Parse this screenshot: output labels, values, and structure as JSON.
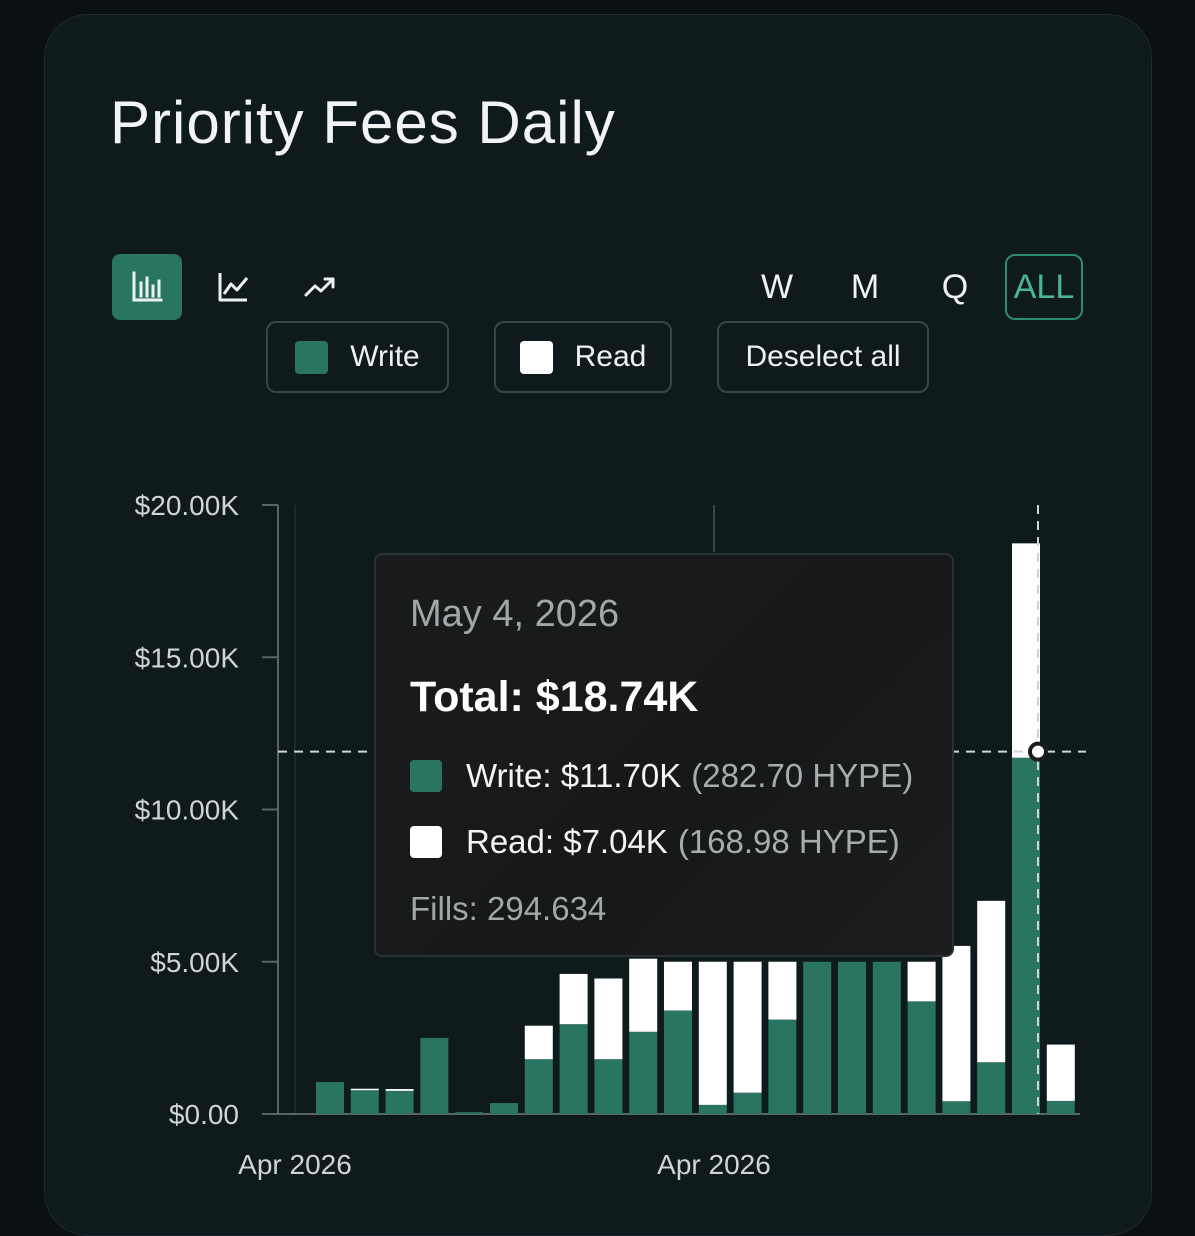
{
  "title": "Priority Fees Daily",
  "chart_types": [
    {
      "name": "bar-chart-icon",
      "active": true
    },
    {
      "name": "line-chart-icon",
      "active": false
    },
    {
      "name": "trend-chart-icon",
      "active": false
    }
  ],
  "periods": [
    {
      "label": "W",
      "active": false
    },
    {
      "label": "M",
      "active": false
    },
    {
      "label": "Q",
      "active": false
    },
    {
      "label": "ALL",
      "active": true
    }
  ],
  "legend": {
    "write_label": "Write",
    "read_label": "Read",
    "deselect_label": "Deselect all"
  },
  "colors": {
    "write": "#2a7561",
    "read": "#ffffff",
    "accent": "#2f8a73"
  },
  "tooltip": {
    "date": "May 4, 2026",
    "total": "Total: $18.74K",
    "write_value": "Write: $11.70K",
    "write_sub": "(282.70 HYPE)",
    "read_value": "Read: $7.04K",
    "read_sub": "(168.98 HYPE)",
    "fills": "Fills: 294.634"
  },
  "chart_data": {
    "type": "bar",
    "stacked": true,
    "ylim": [
      0,
      20000
    ],
    "y_ticks": [
      "$0.00",
      "$5.00K",
      "$10.00K",
      "$15.00K",
      "$20.00K"
    ],
    "x_ticks": [
      "Apr 2026",
      "Apr 2026"
    ],
    "series": [
      {
        "name": "Write",
        "values": [
          1050,
          780,
          760,
          2500,
          60,
          360,
          1800,
          2950,
          1800,
          2700,
          3400,
          300,
          700,
          3100,
          5000,
          5000,
          5000,
          3700,
          420,
          1700,
          11700,
          430
        ]
      },
      {
        "name": "Read",
        "values": [
          0,
          50,
          60,
          0,
          0,
          0,
          1100,
          1650,
          2650,
          2400,
          1600,
          4700,
          4300,
          1900,
          0,
          0,
          0,
          1300,
          5100,
          5300,
          7040,
          1850
        ]
      }
    ],
    "highlighted_index": 20,
    "crosshair_value": 11900
  }
}
